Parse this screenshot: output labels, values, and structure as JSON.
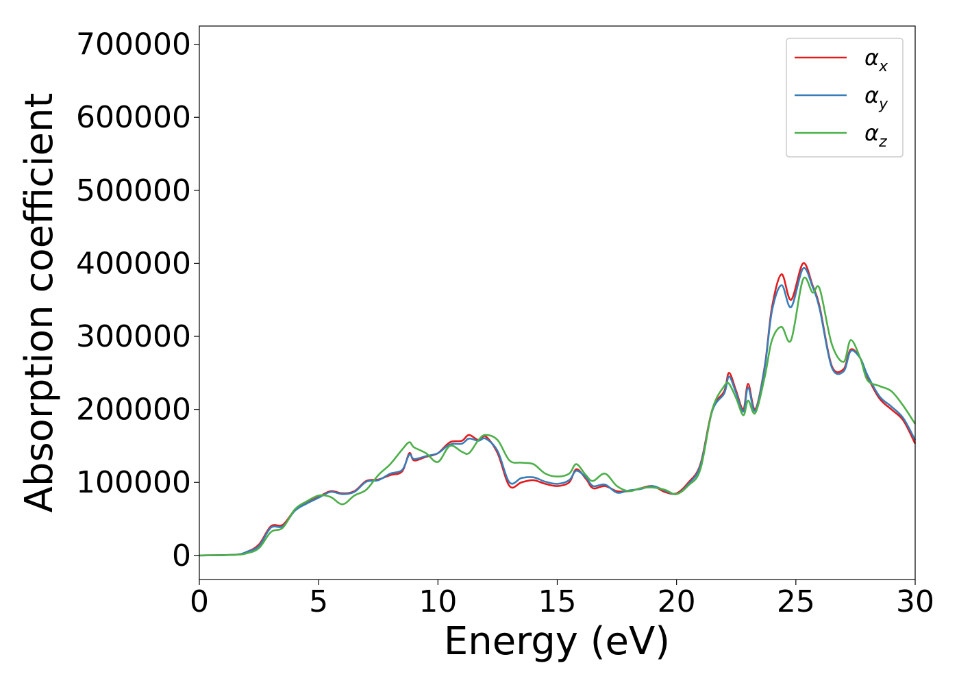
{
  "chart_data": {
    "type": "line",
    "title": "",
    "xlabel": "Energy (eV)",
    "ylabel": "Absorption coefficient",
    "xlim": [
      0,
      30
    ],
    "ylim": [
      -33000,
      725000
    ],
    "xticks": [
      0,
      5,
      10,
      15,
      20,
      25,
      30
    ],
    "xtick_labels": [
      "0",
      "5",
      "10",
      "15",
      "20",
      "25",
      "30"
    ],
    "yticks": [
      0,
      100000,
      200000,
      300000,
      400000,
      500000,
      600000,
      700000
    ],
    "ytick_labels": [
      "0",
      "100000",
      "200000",
      "300000",
      "400000",
      "500000",
      "600000",
      "700000"
    ],
    "grid": false,
    "legend_position": "top-right",
    "series": [
      {
        "name": "αx",
        "symbol": "α",
        "subscript": "x",
        "color": "#e41a1c",
        "points": [
          [
            0,
            0
          ],
          [
            1.5,
            1000
          ],
          [
            2,
            5000
          ],
          [
            2.5,
            15000
          ],
          [
            3,
            40000
          ],
          [
            3.5,
            42000
          ],
          [
            4,
            62000
          ],
          [
            4.5,
            72000
          ],
          [
            5,
            80000
          ],
          [
            5.5,
            88000
          ],
          [
            6,
            85000
          ],
          [
            6.5,
            88000
          ],
          [
            7,
            102000
          ],
          [
            7.5,
            104000
          ],
          [
            8,
            110000
          ],
          [
            8.5,
            115000
          ],
          [
            8.8,
            140000
          ],
          [
            9,
            130000
          ],
          [
            9.5,
            135000
          ],
          [
            10,
            140000
          ],
          [
            10.5,
            155000
          ],
          [
            11,
            157000
          ],
          [
            11.3,
            165000
          ],
          [
            11.7,
            158000
          ],
          [
            12,
            163000
          ],
          [
            12.5,
            140000
          ],
          [
            13,
            95000
          ],
          [
            13.5,
            100000
          ],
          [
            14,
            103000
          ],
          [
            14.5,
            98000
          ],
          [
            15,
            95000
          ],
          [
            15.5,
            100000
          ],
          [
            15.8,
            118000
          ],
          [
            16.2,
            105000
          ],
          [
            16.5,
            92000
          ],
          [
            17,
            95000
          ],
          [
            17.5,
            88000
          ],
          [
            18,
            88000
          ],
          [
            18.5,
            92000
          ],
          [
            19,
            95000
          ],
          [
            19.5,
            87000
          ],
          [
            20,
            85000
          ],
          [
            20.5,
            100000
          ],
          [
            21,
            125000
          ],
          [
            21.5,
            200000
          ],
          [
            22,
            225000
          ],
          [
            22.2,
            250000
          ],
          [
            22.5,
            225000
          ],
          [
            22.8,
            200000
          ],
          [
            23,
            235000
          ],
          [
            23.3,
            200000
          ],
          [
            23.7,
            260000
          ],
          [
            24,
            340000
          ],
          [
            24.4,
            385000
          ],
          [
            24.8,
            350000
          ],
          [
            25.3,
            400000
          ],
          [
            25.7,
            370000
          ],
          [
            26,
            340000
          ],
          [
            26.5,
            260000
          ],
          [
            27,
            255000
          ],
          [
            27.3,
            282000
          ],
          [
            27.7,
            270000
          ],
          [
            28,
            245000
          ],
          [
            28.5,
            215000
          ],
          [
            29,
            200000
          ],
          [
            29.5,
            185000
          ],
          [
            30,
            153000
          ]
        ]
      },
      {
        "name": "αy",
        "symbol": "α",
        "subscript": "y",
        "color": "#377eb8",
        "points": [
          [
            0,
            0
          ],
          [
            1.5,
            1000
          ],
          [
            2,
            5000
          ],
          [
            2.5,
            13000
          ],
          [
            3,
            38000
          ],
          [
            3.5,
            40000
          ],
          [
            4,
            61000
          ],
          [
            4.5,
            71000
          ],
          [
            5,
            79000
          ],
          [
            5.5,
            87000
          ],
          [
            6,
            84000
          ],
          [
            6.5,
            87000
          ],
          [
            7,
            101000
          ],
          [
            7.5,
            103000
          ],
          [
            8,
            112000
          ],
          [
            8.5,
            117000
          ],
          [
            8.8,
            138000
          ],
          [
            9,
            132000
          ],
          [
            9.5,
            136000
          ],
          [
            10,
            140000
          ],
          [
            10.5,
            152000
          ],
          [
            11,
            153000
          ],
          [
            11.3,
            160000
          ],
          [
            11.7,
            157000
          ],
          [
            12,
            160000
          ],
          [
            12.5,
            143000
          ],
          [
            13,
            100000
          ],
          [
            13.5,
            106000
          ],
          [
            14,
            107000
          ],
          [
            14.5,
            101000
          ],
          [
            15,
            98000
          ],
          [
            15.5,
            103000
          ],
          [
            15.8,
            116000
          ],
          [
            16.2,
            107000
          ],
          [
            16.5,
            95000
          ],
          [
            17,
            97000
          ],
          [
            17.5,
            86000
          ],
          [
            18,
            89000
          ],
          [
            18.5,
            91000
          ],
          [
            19,
            95000
          ],
          [
            19.5,
            89000
          ],
          [
            20,
            84000
          ],
          [
            20.5,
            98000
          ],
          [
            21,
            123000
          ],
          [
            21.5,
            198000
          ],
          [
            22,
            222000
          ],
          [
            22.2,
            245000
          ],
          [
            22.5,
            222000
          ],
          [
            22.8,
            197000
          ],
          [
            23,
            230000
          ],
          [
            23.3,
            198000
          ],
          [
            23.7,
            258000
          ],
          [
            24,
            335000
          ],
          [
            24.4,
            370000
          ],
          [
            24.8,
            340000
          ],
          [
            25.3,
            393000
          ],
          [
            25.7,
            368000
          ],
          [
            26,
            337000
          ],
          [
            26.5,
            258000
          ],
          [
            27,
            252000
          ],
          [
            27.3,
            280000
          ],
          [
            27.7,
            270000
          ],
          [
            28,
            247000
          ],
          [
            28.5,
            218000
          ],
          [
            29,
            204000
          ],
          [
            29.5,
            188000
          ],
          [
            30,
            158000
          ]
        ]
      },
      {
        "name": "αz",
        "symbol": "α",
        "subscript": "z",
        "color": "#4daf4a",
        "points": [
          [
            0,
            0
          ],
          [
            1.5,
            800
          ],
          [
            2,
            3000
          ],
          [
            2.5,
            10000
          ],
          [
            3,
            32000
          ],
          [
            3.5,
            38000
          ],
          [
            4,
            63000
          ],
          [
            4.5,
            74000
          ],
          [
            5,
            82000
          ],
          [
            5.5,
            80000
          ],
          [
            6,
            70000
          ],
          [
            6.5,
            82000
          ],
          [
            7,
            90000
          ],
          [
            7.5,
            110000
          ],
          [
            8,
            125000
          ],
          [
            8.5,
            145000
          ],
          [
            8.8,
            155000
          ],
          [
            9,
            148000
          ],
          [
            9.5,
            140000
          ],
          [
            10,
            128000
          ],
          [
            10.5,
            150000
          ],
          [
            11,
            142000
          ],
          [
            11.3,
            140000
          ],
          [
            11.7,
            158000
          ],
          [
            12,
            165000
          ],
          [
            12.5,
            158000
          ],
          [
            13,
            130000
          ],
          [
            13.5,
            127000
          ],
          [
            14,
            125000
          ],
          [
            14.5,
            112000
          ],
          [
            15,
            108000
          ],
          [
            15.5,
            112000
          ],
          [
            15.8,
            125000
          ],
          [
            16.2,
            110000
          ],
          [
            16.5,
            102000
          ],
          [
            17,
            112000
          ],
          [
            17.5,
            95000
          ],
          [
            18,
            88000
          ],
          [
            18.5,
            92000
          ],
          [
            19,
            93000
          ],
          [
            19.5,
            90000
          ],
          [
            20,
            84000
          ],
          [
            20.5,
            96000
          ],
          [
            21,
            118000
          ],
          [
            21.5,
            200000
          ],
          [
            22,
            232000
          ],
          [
            22.2,
            235000
          ],
          [
            22.5,
            215000
          ],
          [
            22.8,
            192000
          ],
          [
            23,
            212000
          ],
          [
            23.3,
            195000
          ],
          [
            23.7,
            245000
          ],
          [
            24,
            295000
          ],
          [
            24.4,
            313000
          ],
          [
            24.8,
            295000
          ],
          [
            25.3,
            378000
          ],
          [
            25.7,
            360000
          ],
          [
            26,
            365000
          ],
          [
            26.5,
            290000
          ],
          [
            27,
            265000
          ],
          [
            27.3,
            295000
          ],
          [
            27.7,
            270000
          ],
          [
            28,
            240000
          ],
          [
            28.5,
            232000
          ],
          [
            29,
            225000
          ],
          [
            29.5,
            205000
          ],
          [
            30,
            180000
          ]
        ]
      }
    ]
  }
}
